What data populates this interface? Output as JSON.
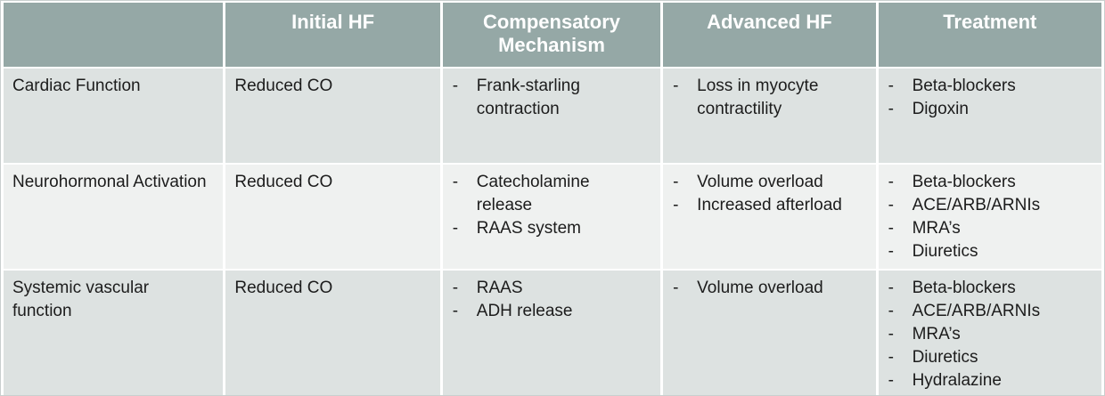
{
  "table": {
    "bullet_char": "-",
    "colors": {
      "header_bg": "#95a8a6",
      "header_text": "#ffffff",
      "row_bg_odd": "#dde2e1",
      "row_bg_even": "#eff1f0",
      "body_text": "#1c1c1c",
      "separator": "#ffffff",
      "frame_border": "#c9cfce"
    },
    "header": {
      "columns": [
        "",
        "Initial HF",
        "Compensatory Mechanism",
        "Advanced HF",
        "Treatment"
      ]
    },
    "rows": [
      {
        "label": "Cardiac Function",
        "initial_hf": "Reduced CO",
        "compensatory_mechanism": [
          "Frank-starling contraction"
        ],
        "advanced_hf": [
          "Loss in myocyte contractility"
        ],
        "treatment": [
          "Beta-blockers",
          "Digoxin"
        ]
      },
      {
        "label": "Neurohormonal Activation",
        "initial_hf": "Reduced CO",
        "compensatory_mechanism": [
          "Catecholamine release",
          "RAAS system"
        ],
        "advanced_hf": [
          "Volume overload",
          "Increased afterload"
        ],
        "treatment": [
          "Beta-blockers",
          "ACE/ARB/ARNIs",
          "MRA’s",
          "Diuretics"
        ]
      },
      {
        "label": "Systemic vascular function",
        "initial_hf": "Reduced CO",
        "compensatory_mechanism": [
          "RAAS",
          "ADH release"
        ],
        "advanced_hf": [
          "Volume overload"
        ],
        "treatment": [
          "Beta-blockers",
          "ACE/ARB/ARNIs",
          "MRA’s",
          "Diuretics",
          "Hydralazine"
        ]
      }
    ]
  }
}
